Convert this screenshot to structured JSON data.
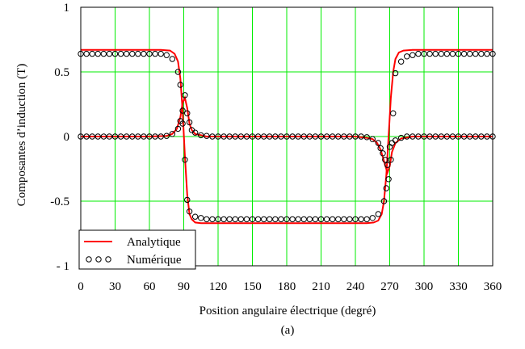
{
  "chart_data": {
    "type": "line",
    "title": "",
    "xlabel": "Position angulaire électrique (degré)",
    "ylabel": "Composantes d’induction (T)",
    "caption": "(a)",
    "xlim": [
      0,
      360
    ],
    "ylim": [
      -1,
      1
    ],
    "xticks": [
      0,
      30,
      60,
      90,
      120,
      150,
      180,
      210,
      240,
      270,
      300,
      330,
      360
    ],
    "xtick_labels": [
      "0",
      "30",
      "60",
      "90",
      "120",
      "150",
      "180",
      "210",
      "240",
      "270",
      "300",
      "330",
      "360"
    ],
    "yticks": [
      1,
      0.5,
      0,
      -0.5,
      -1
    ],
    "ytick_labels": [
      "1",
      "0.5",
      "0",
      "-0.5",
      "- 1"
    ],
    "grid": true,
    "legend_position": "bottom-left",
    "colors": {
      "analytique": "#ff0000",
      "numerique": "#000000",
      "grid": "#00ee00",
      "frame": "#000000"
    },
    "series": [
      {
        "name": "Analytique",
        "style": "line",
        "x": [
          0,
          10,
          20,
          30,
          40,
          50,
          60,
          70,
          78,
          82,
          85,
          87,
          89,
          91,
          93,
          95,
          97,
          100,
          105,
          110,
          120,
          150,
          180,
          210,
          240,
          250,
          256,
          260,
          263,
          265,
          267,
          269,
          271,
          273,
          275,
          278,
          282,
          290,
          300,
          330,
          360
        ],
        "y": [
          0.67,
          0.67,
          0.67,
          0.67,
          0.67,
          0.67,
          0.67,
          0.67,
          0.665,
          0.64,
          0.58,
          0.45,
          0.2,
          -0.15,
          -0.45,
          -0.6,
          -0.64,
          -0.665,
          -0.67,
          -0.67,
          -0.67,
          -0.67,
          -0.67,
          -0.67,
          -0.67,
          -0.67,
          -0.665,
          -0.65,
          -0.6,
          -0.5,
          -0.3,
          0.0,
          0.3,
          0.5,
          0.6,
          0.65,
          0.665,
          0.67,
          0.67,
          0.67,
          0.67
        ]
      },
      {
        "name": "Analytique",
        "style": "line",
        "x": [
          0,
          30,
          60,
          75,
          80,
          84,
          87,
          89,
          91,
          93,
          95,
          97,
          100,
          105,
          110,
          120,
          150,
          180,
          210,
          240,
          250,
          255,
          259,
          262,
          264,
          266,
          268,
          270,
          272,
          275,
          280,
          290,
          300,
          330,
          360
        ],
        "y": [
          0.0,
          0.0,
          0.0,
          0.005,
          0.02,
          0.06,
          0.15,
          0.26,
          0.3,
          0.22,
          0.1,
          0.05,
          0.02,
          0.01,
          0.0,
          0.0,
          0.0,
          0.0,
          0.0,
          0.0,
          -0.01,
          -0.02,
          -0.05,
          -0.1,
          -0.16,
          -0.22,
          -0.28,
          -0.23,
          -0.12,
          -0.05,
          -0.015,
          0.0,
          0.0,
          0.0,
          0.0
        ]
      },
      {
        "name": "Numérique",
        "style": "markers",
        "x": [
          0,
          5,
          10,
          15,
          20,
          25,
          30,
          35,
          40,
          45,
          50,
          55,
          60,
          65,
          70,
          75,
          80,
          85,
          87,
          89,
          91,
          93,
          95,
          100,
          105,
          110,
          115,
          120,
          125,
          130,
          135,
          140,
          145,
          150,
          155,
          160,
          165,
          170,
          175,
          180,
          185,
          190,
          195,
          200,
          205,
          210,
          215,
          220,
          225,
          230,
          235,
          240,
          245,
          250,
          255,
          260,
          265,
          267,
          269,
          271,
          273,
          275,
          280,
          285,
          290,
          295,
          300,
          305,
          310,
          315,
          320,
          325,
          330,
          335,
          340,
          345,
          350,
          355,
          360
        ],
        "y": [
          0.64,
          0.64,
          0.64,
          0.64,
          0.64,
          0.64,
          0.64,
          0.64,
          0.64,
          0.64,
          0.64,
          0.64,
          0.64,
          0.64,
          0.64,
          0.63,
          0.6,
          0.5,
          0.4,
          0.1,
          -0.18,
          -0.49,
          -0.58,
          -0.62,
          -0.63,
          -0.64,
          -0.64,
          -0.64,
          -0.64,
          -0.64,
          -0.64,
          -0.64,
          -0.64,
          -0.64,
          -0.64,
          -0.64,
          -0.64,
          -0.64,
          -0.64,
          -0.64,
          -0.64,
          -0.64,
          -0.64,
          -0.64,
          -0.64,
          -0.64,
          -0.64,
          -0.64,
          -0.64,
          -0.64,
          -0.64,
          -0.64,
          -0.64,
          -0.64,
          -0.63,
          -0.6,
          -0.5,
          -0.4,
          -0.33,
          -0.18,
          0.18,
          0.49,
          0.58,
          0.62,
          0.63,
          0.64,
          0.64,
          0.64,
          0.64,
          0.64,
          0.64,
          0.64,
          0.64,
          0.64,
          0.64,
          0.64,
          0.64,
          0.64,
          0.64
        ]
      },
      {
        "name": "Numérique",
        "style": "markers",
        "x": [
          0,
          5,
          10,
          15,
          20,
          25,
          30,
          35,
          40,
          45,
          50,
          55,
          60,
          65,
          70,
          75,
          80,
          85,
          87,
          89,
          91,
          93,
          95,
          97,
          100,
          105,
          110,
          115,
          120,
          125,
          130,
          135,
          140,
          145,
          150,
          155,
          160,
          165,
          170,
          175,
          180,
          185,
          190,
          195,
          200,
          205,
          210,
          215,
          220,
          225,
          230,
          235,
          240,
          245,
          250,
          255,
          260,
          262,
          264,
          266,
          268,
          270,
          272,
          275,
          280,
          285,
          290,
          295,
          300,
          305,
          310,
          315,
          320,
          325,
          330,
          335,
          340,
          345,
          350,
          355,
          360
        ],
        "y": [
          0.0,
          0.0,
          0.0,
          0.0,
          0.0,
          0.0,
          0.0,
          0.0,
          0.0,
          0.0,
          0.0,
          0.0,
          0.0,
          0.0,
          0.0,
          0.005,
          0.02,
          0.06,
          0.12,
          0.2,
          0.32,
          0.18,
          0.11,
          0.05,
          0.03,
          0.01,
          0.005,
          0.0,
          0.0,
          0.0,
          0.0,
          0.0,
          0.0,
          0.0,
          0.0,
          0.0,
          0.0,
          0.0,
          0.0,
          0.0,
          0.0,
          0.0,
          0.0,
          0.0,
          0.0,
          0.0,
          0.0,
          0.0,
          0.0,
          0.0,
          0.0,
          0.0,
          0.0,
          0.0,
          -0.005,
          -0.02,
          -0.05,
          -0.09,
          -0.13,
          -0.18,
          -0.22,
          -0.08,
          -0.05,
          -0.03,
          -0.01,
          0.0,
          0.0,
          0.0,
          0.0,
          0.0,
          0.0,
          0.0,
          0.0,
          0.0,
          0.0,
          0.0,
          0.0,
          0.0,
          0.0,
          0.0,
          0.0
        ]
      }
    ]
  }
}
